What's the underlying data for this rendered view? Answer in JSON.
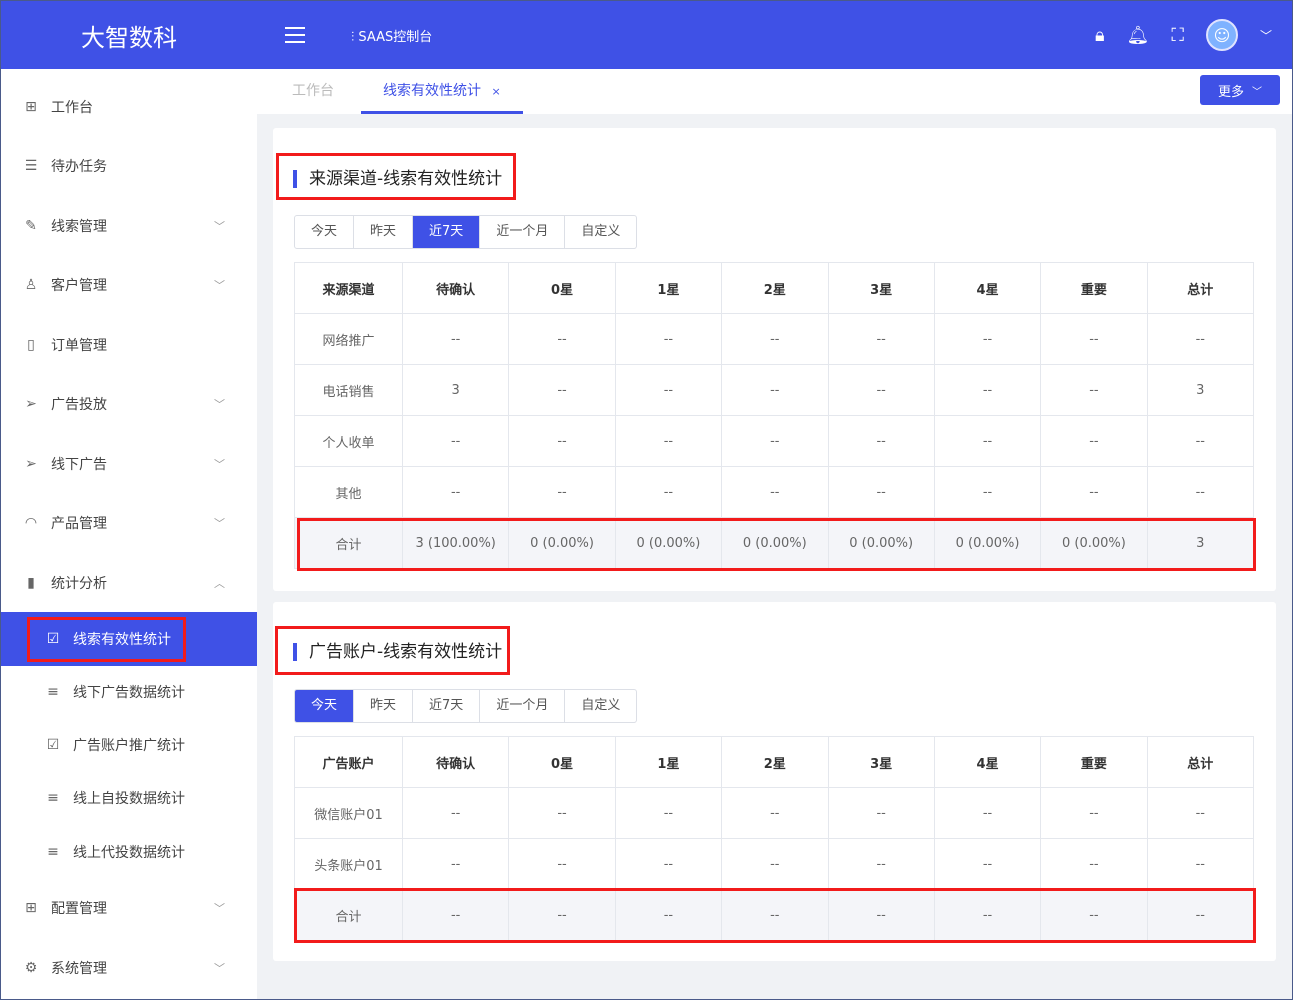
{
  "brand": "大智数科",
  "header": {
    "console": "SAAS控制台",
    "icons": [
      "lock-icon",
      "bell-icon",
      "fullscreen-icon",
      "avatar",
      "chevron-down-icon"
    ]
  },
  "tabs": [
    {
      "label": "工作台"
    },
    {
      "label": "线索有效性统计",
      "close": "×"
    }
  ],
  "more_label": "更多",
  "sidebar": [
    {
      "label": "工作台",
      "icon": "grid-icon"
    },
    {
      "label": "待办任务",
      "icon": "task-icon"
    },
    {
      "label": "线索管理",
      "icon": "edit-icon",
      "chevron": "﹀"
    },
    {
      "label": "客户管理",
      "icon": "user-icon",
      "chevron": "﹀"
    },
    {
      "label": "订单管理",
      "icon": "order-icon"
    },
    {
      "label": "广告投放",
      "icon": "send-icon",
      "chevron": "﹀"
    },
    {
      "label": "线下广告",
      "icon": "send-icon",
      "chevron": "﹀"
    },
    {
      "label": "产品管理",
      "icon": "product-icon",
      "chevron": "﹀"
    },
    {
      "label": "统计分析",
      "icon": "chart-icon",
      "chevron": "︿"
    },
    {
      "label": "线索有效性统计",
      "icon": "checkbox-icon",
      "sub": true,
      "active": true
    },
    {
      "label": "线下广告数据统计",
      "icon": "list-icon",
      "sub": true
    },
    {
      "label": "广告账户推广统计",
      "icon": "checkbox-icon",
      "sub": true
    },
    {
      "label": "线上自投数据统计",
      "icon": "list-icon",
      "sub": true
    },
    {
      "label": "线上代投数据统计",
      "icon": "list-icon",
      "sub": true
    },
    {
      "label": "配置管理",
      "icon": "grid-icon",
      "chevron": "﹀"
    },
    {
      "label": "系统管理",
      "icon": "gear-icon",
      "chevron": "﹀"
    }
  ],
  "periods": [
    "今天",
    "昨天",
    "近7天",
    "近一个月",
    "自定义"
  ],
  "cards": [
    {
      "title": "来源渠道-线索有效性统计",
      "active_period": 2,
      "headers": [
        "来源渠道",
        "待确认",
        "0星",
        "1星",
        "2星",
        "3星",
        "4星",
        "重要",
        "总计"
      ],
      "rows": [
        [
          "网络推广",
          "--",
          "--",
          "--",
          "--",
          "--",
          "--",
          "--",
          "--"
        ],
        [
          "电话销售",
          "3",
          "--",
          "--",
          "--",
          "--",
          "--",
          "--",
          "3"
        ],
        [
          "个人收单",
          "--",
          "--",
          "--",
          "--",
          "--",
          "--",
          "--",
          "--"
        ],
        [
          "其他",
          "--",
          "--",
          "--",
          "--",
          "--",
          "--",
          "--",
          "--"
        ]
      ],
      "total": [
        "合计",
        "3 (100.00%)",
        "0 (0.00%)",
        "0 (0.00%)",
        "0 (0.00%)",
        "0 (0.00%)",
        "0 (0.00%)",
        "0 (0.00%)",
        "3"
      ]
    },
    {
      "title": "广告账户-线索有效性统计",
      "active_period": 0,
      "headers": [
        "广告账户",
        "待确认",
        "0星",
        "1星",
        "2星",
        "3星",
        "4星",
        "重要",
        "总计"
      ],
      "rows": [
        [
          "微信账户01",
          "--",
          "--",
          "--",
          "--",
          "--",
          "--",
          "--",
          "--"
        ],
        [
          "头条账户01",
          "--",
          "--",
          "--",
          "--",
          "--",
          "--",
          "--",
          "--"
        ]
      ],
      "total": [
        "合计",
        "--",
        "--",
        "--",
        "--",
        "--",
        "--",
        "--",
        "--"
      ]
    }
  ]
}
